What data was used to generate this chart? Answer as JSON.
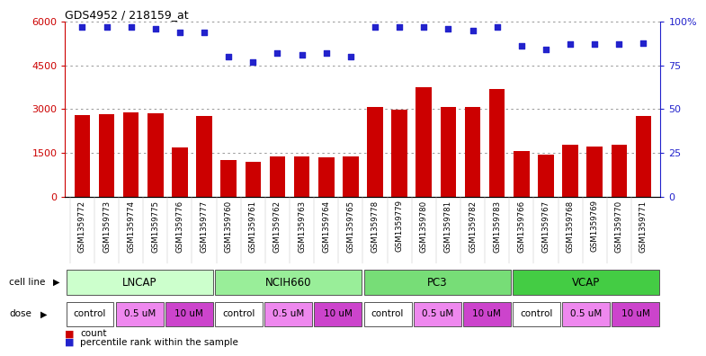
{
  "title": "GDS4952 / 218159_at",
  "samples": [
    "GSM1359772",
    "GSM1359773",
    "GSM1359774",
    "GSM1359775",
    "GSM1359776",
    "GSM1359777",
    "GSM1359760",
    "GSM1359761",
    "GSM1359762",
    "GSM1359763",
    "GSM1359764",
    "GSM1359765",
    "GSM1359778",
    "GSM1359779",
    "GSM1359780",
    "GSM1359781",
    "GSM1359782",
    "GSM1359783",
    "GSM1359766",
    "GSM1359767",
    "GSM1359768",
    "GSM1359769",
    "GSM1359770",
    "GSM1359771"
  ],
  "counts": [
    2800,
    2820,
    2900,
    2870,
    1680,
    2780,
    1260,
    1180,
    1380,
    1390,
    1360,
    1370,
    3080,
    2980,
    3750,
    3080,
    3080,
    3700,
    1560,
    1430,
    1780,
    1720,
    1780,
    2780
  ],
  "percentiles": [
    97,
    97,
    97,
    96,
    94,
    94,
    80,
    77,
    82,
    81,
    82,
    80,
    97,
    97,
    97,
    96,
    95,
    97,
    86,
    84,
    87,
    87,
    87,
    88
  ],
  "cell_lines": [
    {
      "label": "LNCAP",
      "start": 0,
      "end": 6,
      "color": "#ccffcc"
    },
    {
      "label": "NCIH660",
      "start": 6,
      "end": 12,
      "color": "#99ee99"
    },
    {
      "label": "PC3",
      "start": 12,
      "end": 18,
      "color": "#77dd77"
    },
    {
      "label": "VCAP",
      "start": 18,
      "end": 24,
      "color": "#44cc44"
    }
  ],
  "doses": [
    {
      "label": "control",
      "start": 0,
      "end": 2,
      "color": "#ffffff"
    },
    {
      "label": "0.5 uM",
      "start": 2,
      "end": 4,
      "color": "#ee88ee"
    },
    {
      "label": "10 uM",
      "start": 4,
      "end": 6,
      "color": "#cc44cc"
    },
    {
      "label": "control",
      "start": 6,
      "end": 8,
      "color": "#ffffff"
    },
    {
      "label": "0.5 uM",
      "start": 8,
      "end": 10,
      "color": "#ee88ee"
    },
    {
      "label": "10 uM",
      "start": 10,
      "end": 12,
      "color": "#cc44cc"
    },
    {
      "label": "control",
      "start": 12,
      "end": 14,
      "color": "#ffffff"
    },
    {
      "label": "0.5 uM",
      "start": 14,
      "end": 16,
      "color": "#ee88ee"
    },
    {
      "label": "10 uM",
      "start": 16,
      "end": 18,
      "color": "#cc44cc"
    },
    {
      "label": "control",
      "start": 18,
      "end": 20,
      "color": "#ffffff"
    },
    {
      "label": "0.5 uM",
      "start": 20,
      "end": 22,
      "color": "#ee88ee"
    },
    {
      "label": "10 uM",
      "start": 22,
      "end": 24,
      "color": "#cc44cc"
    }
  ],
  "bar_color": "#cc0000",
  "dot_color": "#2222cc",
  "ylim_left": [
    0,
    6000
  ],
  "ylim_right": [
    0,
    100
  ],
  "yticks_left": [
    0,
    1500,
    3000,
    4500,
    6000
  ],
  "yticks_right": [
    0,
    25,
    50,
    75,
    100
  ],
  "ytick_labels_left": [
    "0",
    "1500",
    "3000",
    "4500",
    "6000"
  ],
  "ytick_labels_right": [
    "0",
    "25",
    "50",
    "75",
    "100%"
  ],
  "bg_color": "#ffffff",
  "grid_color": "#888888",
  "xtick_bg": "#dddddd"
}
